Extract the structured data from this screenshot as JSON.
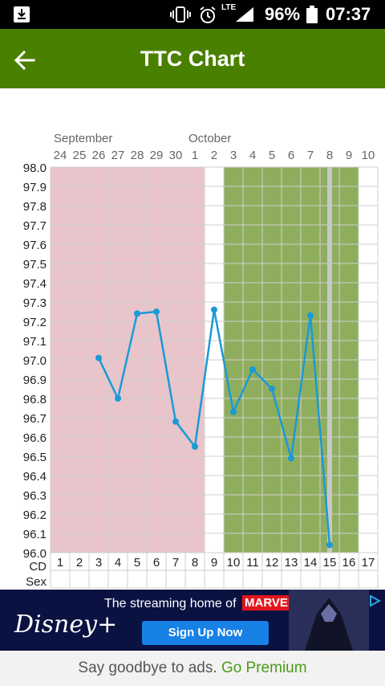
{
  "status_bar": {
    "battery": "96%",
    "time": "07:37",
    "network": "LTE"
  },
  "app_bar": {
    "title": "TTC Chart"
  },
  "chart_data": {
    "type": "line",
    "months": [
      {
        "label": "September",
        "start_index": 0
      },
      {
        "label": "October",
        "start_index": 7
      }
    ],
    "dates": [
      "24",
      "25",
      "26",
      "27",
      "28",
      "29",
      "30",
      "1",
      "2",
      "3",
      "4",
      "5",
      "6",
      "7",
      "8",
      "9",
      "10"
    ],
    "cycle_days": [
      "1",
      "2",
      "3",
      "4",
      "5",
      "6",
      "7",
      "8",
      "9",
      "10",
      "11",
      "12",
      "13",
      "14",
      "15",
      "16",
      "17"
    ],
    "row_labels": {
      "cd": "CD",
      "sex": "Sex"
    },
    "y_ticks": [
      "98.0",
      "97.9",
      "97.8",
      "97.7",
      "97.6",
      "97.5",
      "97.4",
      "97.3",
      "97.2",
      "97.1",
      "97.0",
      "96.9",
      "96.8",
      "96.7",
      "96.6",
      "96.5",
      "96.4",
      "96.3",
      "96.2",
      "96.1",
      "96.0"
    ],
    "ylim": [
      96.0,
      98.0
    ],
    "series": [
      {
        "values": [
          null,
          null,
          97.01,
          96.8,
          97.24,
          97.25,
          96.68,
          96.55,
          97.26,
          96.73,
          96.95,
          96.85,
          96.49,
          97.23,
          96.04,
          null,
          null
        ]
      }
    ],
    "bands": [
      {
        "from_day": 1,
        "to_day": 8,
        "color": "#e9c4cb"
      },
      {
        "from_day": 10,
        "to_day": 16,
        "color": "#8fae5d"
      }
    ],
    "today_day": 15,
    "colors": {
      "line": "#1a9ad6",
      "today": "#c8c8c8",
      "grid": "#cfcfcf"
    },
    "grid": true
  },
  "ad": {
    "tagline": "The streaming home of",
    "brand_tag": "MARVEL",
    "button": "Sign Up Now",
    "logo": "Disney+"
  },
  "premium": {
    "text": "Say goodbye to ads.",
    "link": "Go Premium"
  }
}
